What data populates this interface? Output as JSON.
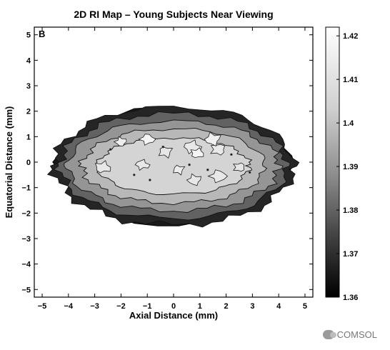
{
  "chart_data": {
    "type": "heatmap",
    "title": "2D RI Map – Young Subjects Near Viewing",
    "panel_label": "B",
    "xlabel": "Axial Distance (mm)",
    "ylabel": "Equatorial Distance (mm)",
    "xlim": [
      -5.3,
      5.3
    ],
    "ylim": [
      -5.3,
      5.3
    ],
    "xticks": [
      -5,
      -4,
      -3,
      -2,
      -1,
      0,
      1,
      2,
      3,
      4,
      5
    ],
    "yticks": [
      -5,
      -4,
      -3,
      -2,
      -1,
      0,
      1,
      2,
      3,
      4,
      5
    ],
    "xtick_labels": [
      "−5",
      "−4",
      "−3",
      "−2",
      "−1",
      "0",
      "1",
      "2",
      "3",
      "4",
      "5"
    ],
    "ytick_labels": [
      "−5",
      "−4",
      "−3",
      "−2",
      "−1",
      "0",
      "1",
      "2",
      "3",
      "4",
      "5"
    ],
    "colorbar": {
      "min": 1.36,
      "max": 1.422,
      "ticks": [
        1.36,
        1.37,
        1.38,
        1.39,
        1.4,
        1.41,
        1.42
      ],
      "tick_labels": [
        "1.36",
        "1.37",
        "1.38",
        "1.39",
        "1.4",
        "1.41",
        "1.42"
      ],
      "colormap": "grayscale"
    },
    "lens_outline": {
      "x": [
        -4.6,
        -4.2,
        -3.7,
        -3.0,
        -2.2,
        -1.5,
        -0.6,
        0.2,
        1.0,
        1.9,
        2.8,
        3.5,
        4.2,
        4.5,
        4.6,
        4.2,
        3.5,
        2.8,
        2.0,
        1.2,
        0.2,
        -0.6,
        -1.5,
        -2.2,
        -3.0,
        -3.7,
        -4.2,
        -4.6
      ],
      "y": [
        0.0,
        0.5,
        1.0,
        1.5,
        1.8,
        2.1,
        2.15,
        2.1,
        2.0,
        1.8,
        1.45,
        1.0,
        0.55,
        0.25,
        -0.1,
        -0.6,
        -1.1,
        -1.6,
        -2.0,
        -2.3,
        -2.5,
        -2.5,
        -2.4,
        -2.1,
        -1.6,
        -1.0,
        -0.5,
        0.0
      ]
    },
    "contour_levels": [
      {
        "value": 1.368,
        "x_radius": 4.6,
        "y_radius": 2.3
      },
      {
        "value": 1.38,
        "x_radius": 4.35,
        "y_radius": 2.05
      },
      {
        "value": 1.39,
        "x_radius": 4.05,
        "y_radius": 1.75
      },
      {
        "value": 1.398,
        "x_radius": 3.5,
        "y_radius": 1.45
      },
      {
        "value": 1.405,
        "x_radius": 2.9,
        "y_radius": 1.1
      }
    ],
    "bright_patches": [
      {
        "x": -2.0,
        "y": 0.8,
        "value": 1.415
      },
      {
        "x": -1.0,
        "y": 0.9,
        "value": 1.418
      },
      {
        "x": 0.7,
        "y": 0.6,
        "value": 1.413
      },
      {
        "x": 0.9,
        "y": 0.35,
        "value": 1.418
      },
      {
        "x": 1.7,
        "y": 0.5,
        "value": 1.413
      },
      {
        "x": 0.2,
        "y": -0.3,
        "value": 1.415
      },
      {
        "x": 0.8,
        "y": -0.7,
        "value": 1.413
      },
      {
        "x": 1.7,
        "y": -0.55,
        "value": 1.413
      },
      {
        "x": -1.2,
        "y": -0.1,
        "value": 1.413
      },
      {
        "x": -2.7,
        "y": -0.2,
        "value": 1.413
      },
      {
        "x": 2.5,
        "y": -0.2,
        "value": 1.412
      },
      {
        "x": -0.3,
        "y": 0.4,
        "value": 1.412
      },
      {
        "x": 1.5,
        "y": 0.9,
        "value": 1.416
      }
    ],
    "dark_spots": [
      {
        "x": -2.4,
        "y": 0.5
      },
      {
        "x": -1.5,
        "y": -0.5
      },
      {
        "x": -0.4,
        "y": 0.6
      },
      {
        "x": 0.6,
        "y": -0.1
      },
      {
        "x": 1.3,
        "y": -0.3
      },
      {
        "x": 2.2,
        "y": 0.3
      },
      {
        "x": -0.9,
        "y": -0.7
      },
      {
        "x": 2.9,
        "y": -0.4
      }
    ]
  },
  "watermark": {
    "text": "COMSOL"
  }
}
